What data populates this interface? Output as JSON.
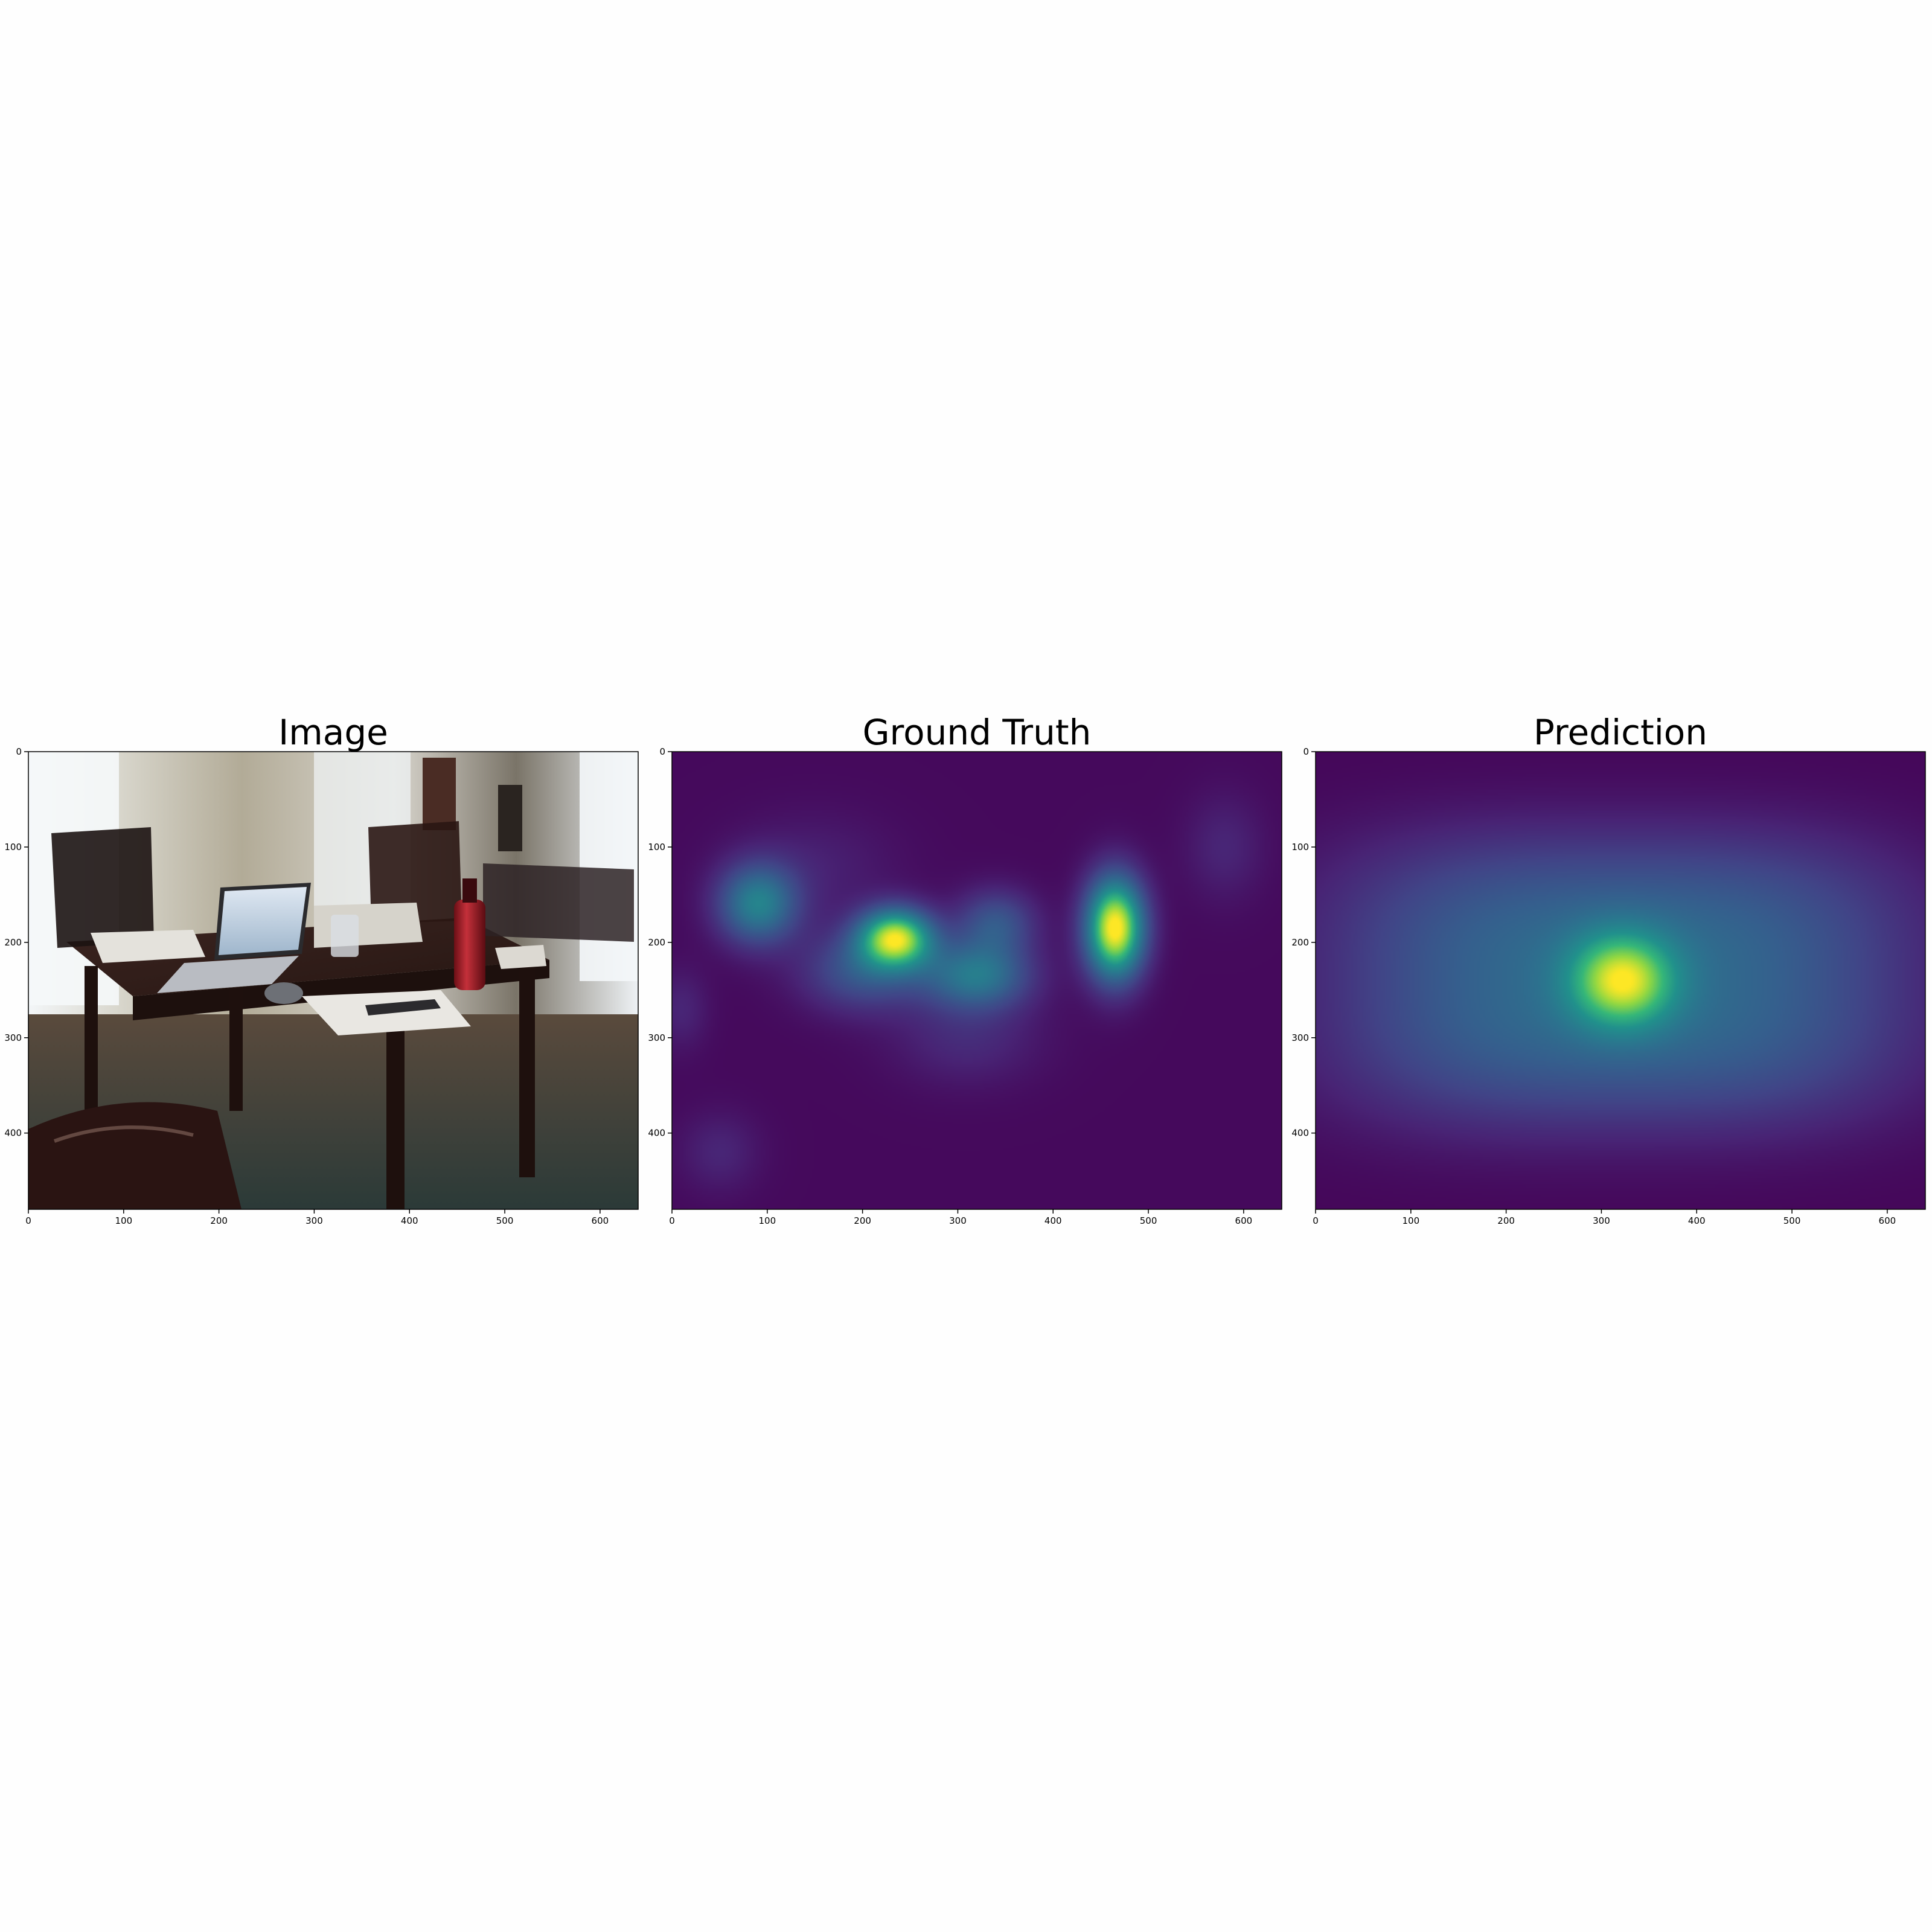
{
  "figure": {
    "background": "#fefefe"
  },
  "panels": [
    {
      "id": "image",
      "title": "Image",
      "content": "photo",
      "photo_description": "dining table with laptop, papers, red water bottle, chairs, bright windows"
    },
    {
      "id": "ground-truth",
      "title": "Ground Truth",
      "content": "heatmap"
    },
    {
      "id": "prediction",
      "title": "Prediction",
      "content": "heatmap"
    }
  ],
  "chart_data": [
    {
      "type": "heatmap",
      "title": "Image",
      "colormap": "photo",
      "xlim": [
        0,
        640
      ],
      "ylim": [
        480,
        0
      ],
      "xticks": [
        0,
        100,
        200,
        300,
        400,
        500,
        600
      ],
      "yticks": [
        0,
        100,
        200,
        300,
        400
      ],
      "xlabel": "",
      "ylabel": ""
    },
    {
      "type": "heatmap",
      "title": "Ground Truth",
      "colormap": "viridis",
      "xlim": [
        0,
        640
      ],
      "ylim": [
        480,
        0
      ],
      "xticks": [
        0,
        100,
        200,
        300,
        400,
        500,
        600
      ],
      "yticks": [
        0,
        100,
        200,
        300,
        400
      ],
      "xlabel": "",
      "ylabel": "",
      "background_level": 0.03,
      "blobs": [
        {
          "x": 465,
          "y": 185,
          "sx": 22,
          "sy": 38,
          "amp": 1.0
        },
        {
          "x": 235,
          "y": 195,
          "sx": 28,
          "sy": 22,
          "amp": 0.85
        },
        {
          "x": 90,
          "y": 160,
          "sx": 30,
          "sy": 30,
          "amp": 0.5
        },
        {
          "x": 320,
          "y": 235,
          "sx": 40,
          "sy": 25,
          "amp": 0.45
        },
        {
          "x": 340,
          "y": 180,
          "sx": 30,
          "sy": 25,
          "amp": 0.3
        },
        {
          "x": 200,
          "y": 230,
          "sx": 45,
          "sy": 30,
          "amp": 0.3
        },
        {
          "x": 310,
          "y": 300,
          "sx": 55,
          "sy": 35,
          "amp": 0.12
        },
        {
          "x": 150,
          "y": 120,
          "sx": 60,
          "sy": 40,
          "amp": 0.08
        },
        {
          "x": 580,
          "y": 100,
          "sx": 30,
          "sy": 40,
          "amp": 0.1
        },
        {
          "x": 50,
          "y": 420,
          "sx": 30,
          "sy": 30,
          "amp": 0.1
        },
        {
          "x": 10,
          "y": 270,
          "sx": 20,
          "sy": 30,
          "amp": 0.1
        }
      ]
    },
    {
      "type": "heatmap",
      "title": "Prediction",
      "colormap": "viridis",
      "xlim": [
        0,
        640
      ],
      "ylim": [
        480,
        0
      ],
      "xticks": [
        0,
        100,
        200,
        300,
        400,
        500,
        600
      ],
      "yticks": [
        0,
        100,
        200,
        300,
        400
      ],
      "xlabel": "",
      "ylabel": "",
      "background_level": 0.02,
      "blobs": [
        {
          "x": 320,
          "y": 240,
          "sx": 240,
          "sy": 120,
          "amp": 0.42,
          "shape": "flat"
        },
        {
          "x": 322,
          "y": 240,
          "sx": 38,
          "sy": 34,
          "amp": 0.58
        }
      ]
    }
  ]
}
